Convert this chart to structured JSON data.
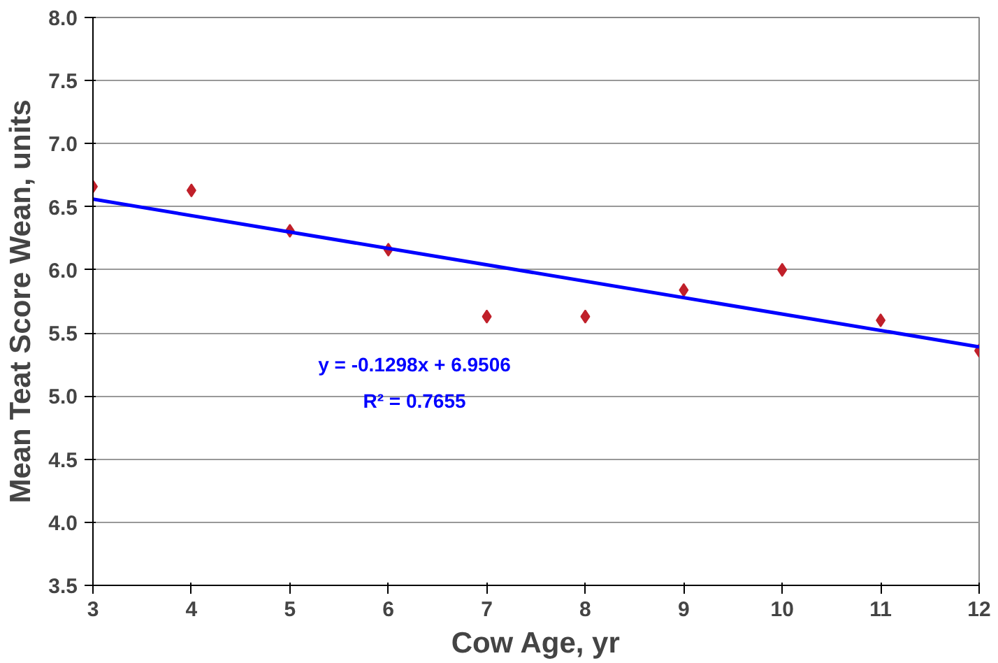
{
  "chart_data": {
    "type": "scatter",
    "xlabel": "Cow Age, yr",
    "ylabel": "Mean Teat Score Wean, units",
    "xlim": [
      3,
      12
    ],
    "xticks": [
      3,
      4,
      5,
      6,
      7,
      8,
      9,
      10,
      11,
      12
    ],
    "ylim": [
      3.5,
      8.0
    ],
    "yticks": [
      {
        "value": 3.5,
        "label": "3.5"
      },
      {
        "value": 4.0,
        "label": "4.0"
      },
      {
        "value": 4.5,
        "label": "4.5"
      },
      {
        "value": 5.0,
        "label": "5.0"
      },
      {
        "value": 5.5,
        "label": "5.5"
      },
      {
        "value": 6.0,
        "label": "6.0"
      },
      {
        "value": 6.5,
        "label": "6.5"
      },
      {
        "value": 7.0,
        "label": "7.0"
      },
      {
        "value": 7.5,
        "label": "7.5"
      },
      {
        "value": 8.0,
        "label": "8.0"
      }
    ],
    "grid": "y",
    "marker": "diamond",
    "series": [
      {
        "color": "#c0202a",
        "x": [
          3,
          4,
          5,
          6,
          7,
          8,
          9,
          10,
          11,
          12
        ],
        "values": [
          6.66,
          6.63,
          6.31,
          6.16,
          5.63,
          5.63,
          5.84,
          6.0,
          5.6,
          5.36
        ]
      },
      {
        "type": "line",
        "marker": "none",
        "color": "#0000ff",
        "x": [
          3,
          12
        ],
        "values": [
          6.56,
          5.39
        ]
      }
    ],
    "annotations": [
      "y = -0.1298x + 6.9506",
      "R² = 0.7655"
    ]
  }
}
